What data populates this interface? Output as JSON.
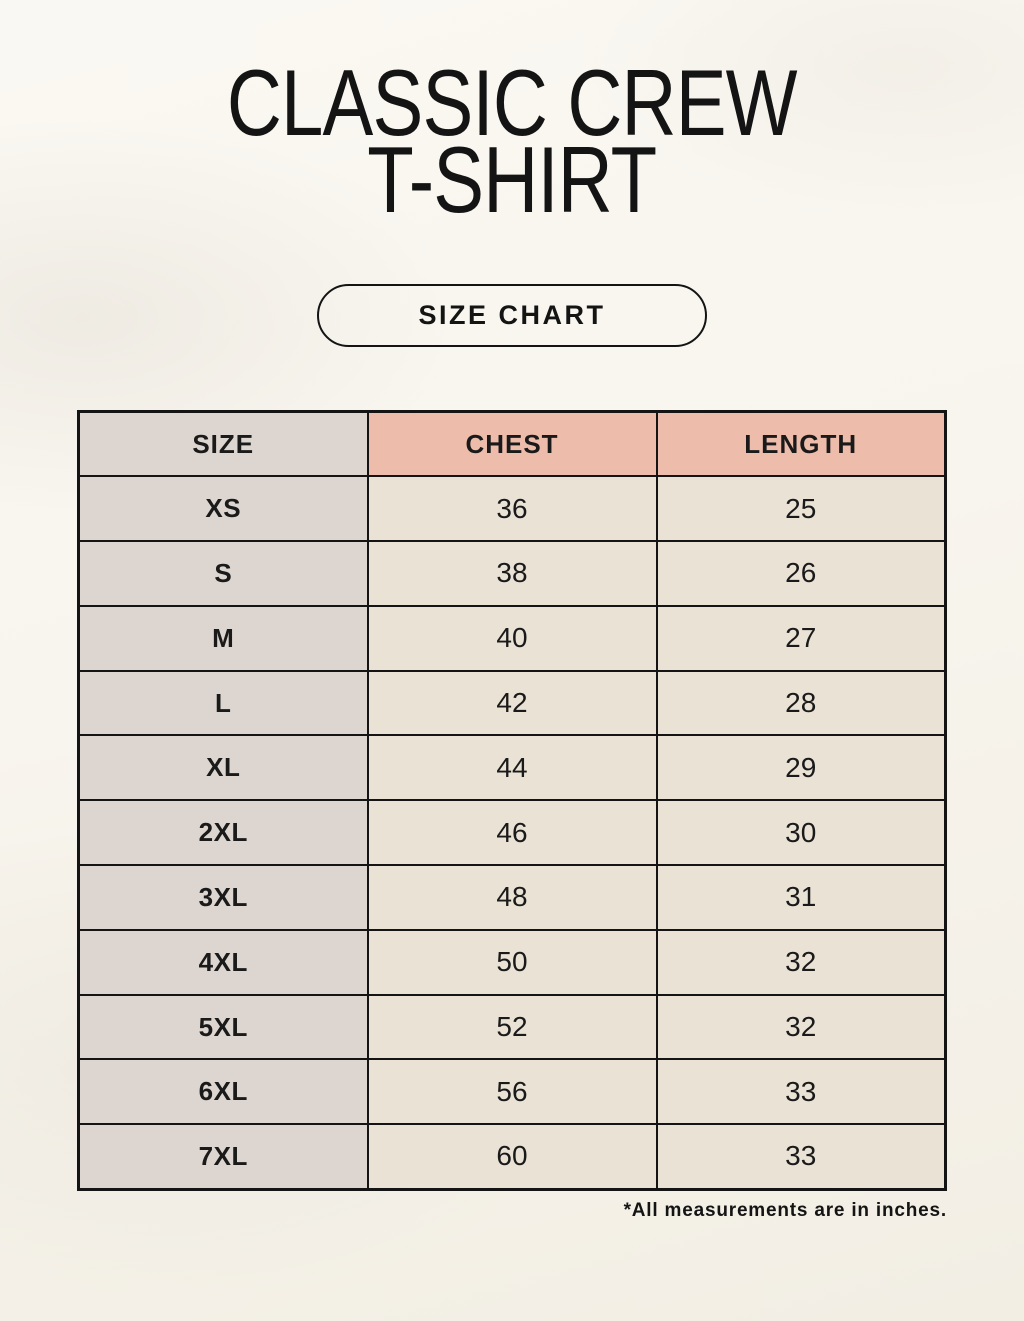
{
  "page": {
    "title_line1": "CLASSIC CREW",
    "title_line2": "T-SHIRT",
    "badge_label": "SIZE CHART",
    "footnote": "*All measurements are in inches."
  },
  "colors": {
    "background": "#f8f5ee",
    "size_column_bg": "#ddd6d0",
    "accent_header_bg": "#edbcab",
    "data_cell_bg": "#e9e2d5",
    "border": "#141414",
    "text": "#1a1a1a"
  },
  "chart_data": {
    "type": "table",
    "title": "Classic Crew T-Shirt Size Chart",
    "columns": [
      "SIZE",
      "CHEST",
      "LENGTH"
    ],
    "rows": [
      [
        "XS",
        "36",
        "25"
      ],
      [
        "S",
        "38",
        "26"
      ],
      [
        "M",
        "40",
        "27"
      ],
      [
        "L",
        "42",
        "28"
      ],
      [
        "XL",
        "44",
        "29"
      ],
      [
        "2XL",
        "46",
        "30"
      ],
      [
        "3XL",
        "48",
        "31"
      ],
      [
        "4XL",
        "50",
        "32"
      ],
      [
        "5XL",
        "52",
        "32"
      ],
      [
        "6XL",
        "56",
        "33"
      ],
      [
        "7XL",
        "60",
        "33"
      ]
    ],
    "units": "inches",
    "layout": "3 equal columns, header row tinted: SIZE gray, CHEST/LENGTH salmon"
  }
}
